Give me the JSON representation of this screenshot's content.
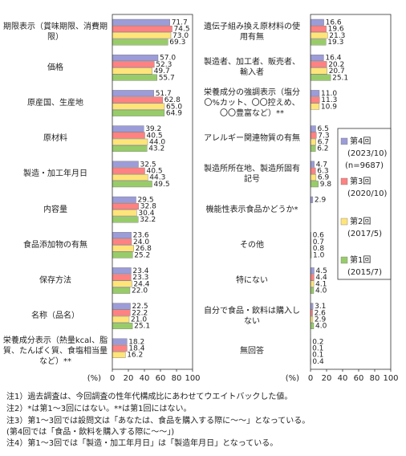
{
  "chart_data": [
    {
      "type": "hbar",
      "xlabel": "(%)",
      "xlim": [
        0,
        100
      ],
      "xticks": [
        0,
        20,
        40,
        60,
        80,
        100
      ],
      "categories": [
        "期限表示（賞味期限、消費期限）",
        "価格",
        "原産国、生産地",
        "原材料",
        "製造・加工年月日",
        "内容量",
        "食品添加物の有無",
        "保存方法",
        "名称（品名）",
        "栄養成分表示（熱量kcal、脂質、たんぱく質、食塩相当量など）**"
      ],
      "series": [
        {
          "name": "第4回",
          "period": "(2023/10)",
          "sample": "(n=9687)",
          "color": "#9c9cd8",
          "values": [
            71.7,
            57.0,
            51.7,
            39.2,
            32.5,
            29.5,
            23.6,
            23.4,
            22.5,
            18.2
          ],
          "value_labels": [
            "71.7",
            "57.0",
            "51.7",
            "39.2",
            "32.5",
            "29.5",
            "23.6",
            "23.4",
            "22.5",
            "18.2"
          ]
        },
        {
          "name": "第3回",
          "period": "(2020/10)",
          "color": "#ff8282",
          "values": [
            74.5,
            52.3,
            62.8,
            40.5,
            40.5,
            32.8,
            24.0,
            23.3,
            22.2,
            18.4
          ],
          "value_labels": [
            "74.5",
            "52.3",
            "62.8",
            "40.5",
            "40.5",
            "32.8",
            "24.0",
            "23.3",
            "22.2",
            "18.4"
          ]
        },
        {
          "name": "第2回",
          "period": "(2017/5)",
          "color": "#ffe47a",
          "values": [
            73.0,
            49.7,
            65.0,
            44.0,
            44.3,
            30.4,
            26.8,
            24.4,
            21.0,
            16.2
          ],
          "value_labels": [
            "73.0",
            "49.7",
            "65.0",
            "44.0",
            "44.3",
            "30.4",
            "26.8",
            "24.4",
            "21.0",
            "16.2"
          ]
        },
        {
          "name": "第1回",
          "period": "(2015/7)",
          "color": "#98cc6a",
          "values": [
            69.3,
            55.7,
            64.9,
            43.2,
            49.5,
            32.2,
            25.2,
            22.0,
            25.1,
            null
          ],
          "value_labels": [
            "69.3",
            "55.7",
            "64.9",
            "43.2",
            "49.5",
            "32.2",
            "25.2",
            "22.0",
            "25.1",
            null
          ]
        }
      ]
    },
    {
      "type": "hbar",
      "xlabel": "(%)",
      "xlim": [
        0,
        100
      ],
      "xticks": [
        0,
        20,
        40,
        60,
        80,
        100
      ],
      "categories": [
        "遺伝子組み換え原材料の使用有無",
        "製造者、加工者、販売者、輸入者",
        "栄養成分の強調表示（塩分〇%カット、〇〇控えめ、〇〇豊富など）**",
        "アレルギー関連物質の有無",
        "製造所所在地、製造所固有記号",
        "機能性表示食品かどうか*",
        "その他",
        "特にない",
        "自分で食品・飲料は購入しない",
        "無回答"
      ],
      "series": [
        {
          "color": "#9c9cd8",
          "values": [
            16.6,
            16.4,
            11.0,
            6.5,
            4.7,
            2.9,
            0.6,
            4.5,
            3.1,
            0.2
          ],
          "value_labels": [
            "16.6",
            "16.4",
            "11.0",
            "6.5",
            "4.7",
            "2.9",
            "0.6",
            "4.5",
            "3.1",
            "0.2"
          ]
        },
        {
          "color": "#ff8282",
          "values": [
            19.6,
            20.2,
            11.3,
            7.3,
            6.3,
            null,
            0.7,
            4.4,
            2.6,
            0.1
          ],
          "value_labels": [
            "19.6",
            "20.2",
            "11.3",
            "7.3",
            "6.3",
            null,
            "0.7",
            "4.4",
            "2.6",
            "0.1"
          ]
        },
        {
          "color": "#ffe47a",
          "values": [
            21.3,
            20.7,
            10.9,
            6.7,
            6.9,
            null,
            0.8,
            4.1,
            2.9,
            0.1
          ],
          "value_labels": [
            "21.3",
            "20.7",
            "10.9",
            "6.7",
            "6.9",
            null,
            "0.8",
            "4.1",
            "2.9",
            "0.1"
          ]
        },
        {
          "color": "#98cc6a",
          "values": [
            19.3,
            25.1,
            null,
            6.2,
            9.8,
            null,
            1.0,
            4.0,
            4.0,
            0.4
          ],
          "value_labels": [
            "19.3",
            "25.1",
            null,
            "6.2",
            "9.8",
            null,
            "1.0",
            "4.0",
            "4.0",
            "0.4"
          ]
        }
      ]
    }
  ],
  "notes": [
    "注1）過去調査は、今回調査の性年代構成比にあわせてウエイトバックした値。",
    "注2）*は第1～3回にはない。**は第1回にはない。",
    "注3）第1～3回では設問文は「あなたは、食品を購入する際に～～」となっている。",
    "(第4回では「食品・飲料を購入する際に～～」)",
    "注4）第1～3回では「製造・加工年月日」は「製造年月日」となっている。"
  ]
}
